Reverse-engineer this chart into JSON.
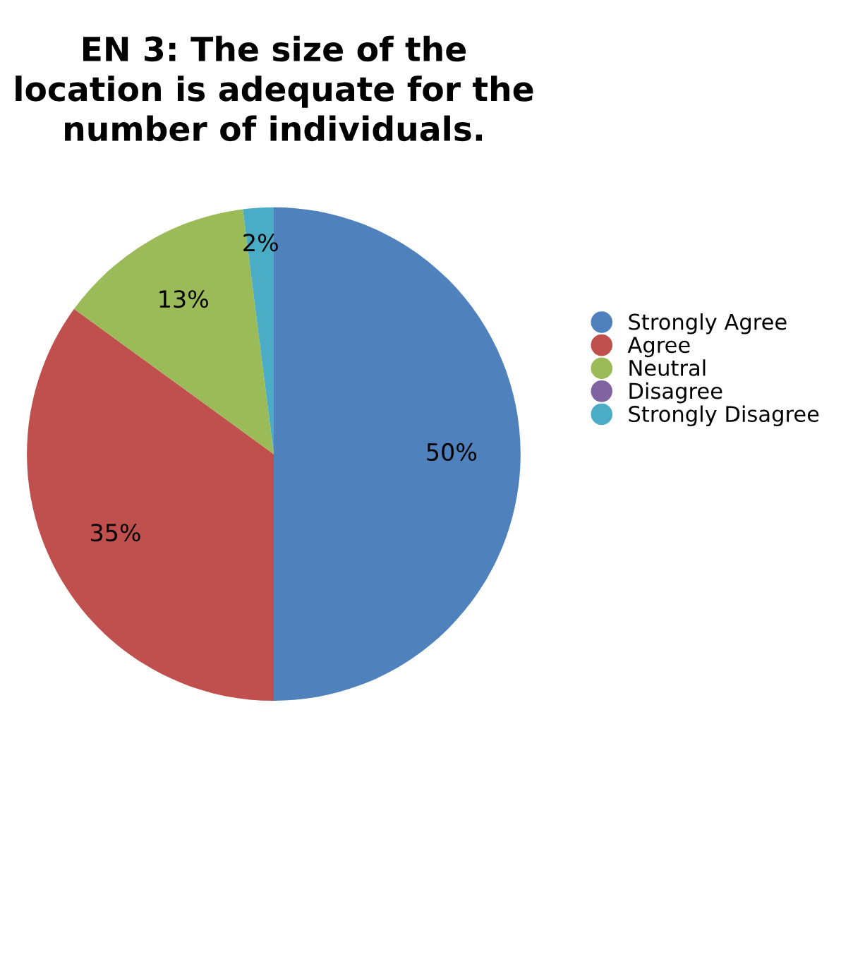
{
  "chart_data": {
    "type": "pie",
    "title": "EN 3: The size of the location is adequate for the number of individuals.",
    "categories": [
      "Strongly Agree",
      "Agree",
      "Neutral",
      "Disagree",
      "Strongly Disagree"
    ],
    "values": [
      50,
      35,
      13,
      0,
      2
    ],
    "value_labels": [
      "50%",
      "35%",
      "13%",
      null,
      "2%"
    ],
    "colors": [
      "#4f81bd",
      "#c0504d",
      "#9bbb59",
      "#8064a2",
      "#4bacc6"
    ],
    "legend": "right"
  }
}
